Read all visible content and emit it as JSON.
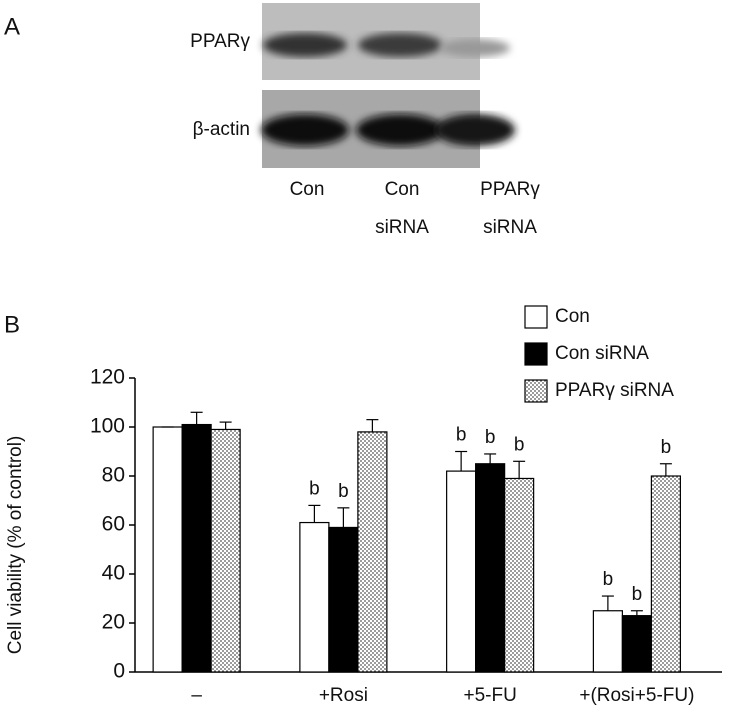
{
  "panel_a": {
    "label": "A",
    "rows": [
      "PPARγ",
      "β-actin"
    ],
    "lanes": [
      [
        "Con"
      ],
      [
        "Con",
        "siRNA"
      ],
      [
        "PPARγ",
        "siRNA"
      ]
    ]
  },
  "chart_data": {
    "type": "bar",
    "panel_label": "B",
    "ylabel": "Cell viability (% of control)",
    "categories": [
      "–",
      "+Rosi",
      "+5-FU",
      "+(Rosi+5-FU)"
    ],
    "ylim": [
      0,
      120
    ],
    "yticks": [
      0,
      20,
      40,
      60,
      80,
      100,
      120
    ],
    "series": [
      {
        "name": "Con",
        "color": "#ffffff",
        "values": [
          100,
          61,
          82,
          25
        ],
        "errors": [
          0,
          7,
          8,
          6
        ],
        "annotations": [
          null,
          "b",
          "b",
          "b"
        ]
      },
      {
        "name": "Con siRNA",
        "color": "#000000",
        "values": [
          101,
          59,
          85,
          23
        ],
        "errors": [
          5,
          8,
          4,
          2
        ],
        "annotations": [
          null,
          "b",
          "b",
          "b"
        ]
      },
      {
        "name": "PPARγ siRNA",
        "color": "dotted",
        "values": [
          99,
          98,
          79,
          80
        ],
        "errors": [
          3,
          5,
          7,
          5
        ],
        "annotations": [
          null,
          null,
          "b",
          "b"
        ]
      }
    ]
  }
}
